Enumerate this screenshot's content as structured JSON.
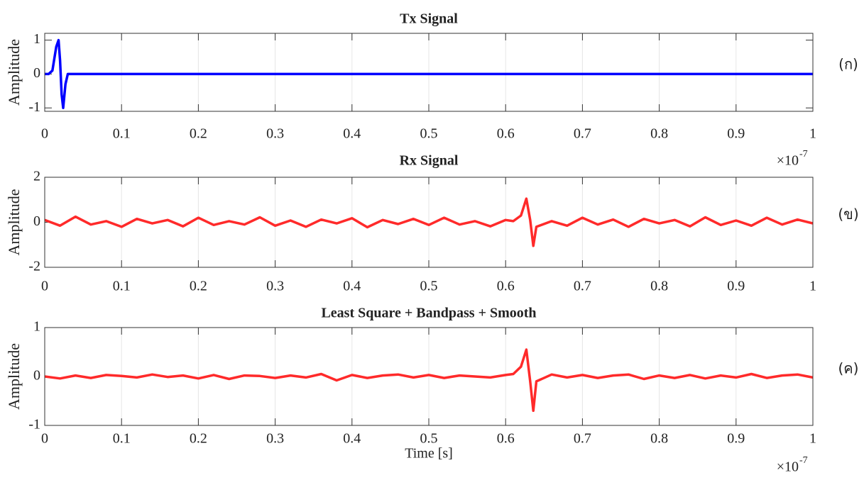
{
  "chart_data": [
    {
      "type": "line",
      "title": "Tx Signal",
      "ylabel": "Amplitude",
      "panel_label": "(ก)",
      "x": [
        0,
        0.005,
        0.01,
        0.015,
        0.018,
        0.02,
        0.022,
        0.024,
        0.027,
        0.03,
        0.04,
        1
      ],
      "series": [
        {
          "color": "#0000ff",
          "values": [
            0,
            0,
            0.1,
            0.8,
            1,
            0.4,
            -0.6,
            -1,
            -0.3,
            0,
            0,
            0
          ]
        }
      ],
      "xlim": [
        0,
        1
      ],
      "xticks": [
        0,
        0.1,
        0.2,
        0.3,
        0.4,
        0.5,
        0.6,
        0.7,
        0.8,
        0.9,
        1
      ],
      "ylim": [
        -1.1,
        1.2
      ],
      "yticks": [
        -1,
        0,
        1
      ],
      "grid": true
    },
    {
      "type": "line",
      "title": "Rx Signal",
      "ylabel": "Amplitude",
      "panel_label": "(ข)",
      "x_multiplier": {
        "base": "×10",
        "exponent": "-7"
      },
      "x": [
        0,
        0.02,
        0.04,
        0.06,
        0.08,
        0.1,
        0.12,
        0.14,
        0.16,
        0.18,
        0.2,
        0.22,
        0.24,
        0.26,
        0.28,
        0.3,
        0.32,
        0.34,
        0.36,
        0.38,
        0.4,
        0.42,
        0.44,
        0.46,
        0.48,
        0.5,
        0.52,
        0.54,
        0.56,
        0.58,
        0.6,
        0.61,
        0.62,
        0.627,
        0.632,
        0.636,
        0.64,
        0.66,
        0.68,
        0.7,
        0.72,
        0.74,
        0.76,
        0.78,
        0.8,
        0.82,
        0.84,
        0.86,
        0.88,
        0.9,
        0.92,
        0.94,
        0.96,
        0.98,
        1
      ],
      "series": [
        {
          "color": "#ff2a2a",
          "values": [
            0.1,
            -0.15,
            0.25,
            -0.1,
            0.05,
            -0.2,
            0.15,
            -0.05,
            0.1,
            -0.18,
            0.2,
            -0.12,
            0.05,
            -0.1,
            0.22,
            -0.15,
            0.08,
            -0.2,
            0.12,
            -0.05,
            0.18,
            -0.22,
            0.1,
            -0.08,
            0.15,
            -0.12,
            0.2,
            -0.1,
            0.05,
            -0.18,
            0.1,
            0.05,
            0.3,
            1.05,
            0.1,
            -1.05,
            -0.2,
            0.05,
            -0.15,
            0.2,
            -0.1,
            0.12,
            -0.2,
            0.15,
            -0.05,
            0.1,
            -0.18,
            0.22,
            -0.12,
            0.08,
            -0.15,
            0.2,
            -0.1,
            0.12,
            -0.05
          ]
        }
      ],
      "xlim": [
        0,
        1
      ],
      "xticks": [
        0,
        0.1,
        0.2,
        0.3,
        0.4,
        0.5,
        0.6,
        0.7,
        0.8,
        0.9,
        1
      ],
      "ylim": [
        -2,
        2
      ],
      "yticks": [
        -2,
        0,
        2
      ],
      "grid": true
    },
    {
      "type": "line",
      "title": "Least Square + Bandpass + Smooth",
      "ylabel": "Amplitude",
      "xlabel": "Time [s]",
      "panel_label": "(ค)",
      "x_multiplier": {
        "base": "×10",
        "exponent": "-7"
      },
      "x": [
        0,
        0.02,
        0.04,
        0.06,
        0.08,
        0.1,
        0.12,
        0.14,
        0.16,
        0.18,
        0.2,
        0.22,
        0.24,
        0.26,
        0.28,
        0.3,
        0.32,
        0.34,
        0.36,
        0.38,
        0.4,
        0.42,
        0.44,
        0.46,
        0.48,
        0.5,
        0.52,
        0.54,
        0.56,
        0.58,
        0.6,
        0.61,
        0.62,
        0.627,
        0.632,
        0.636,
        0.64,
        0.66,
        0.68,
        0.7,
        0.72,
        0.74,
        0.76,
        0.78,
        0.8,
        0.82,
        0.84,
        0.86,
        0.88,
        0.9,
        0.92,
        0.94,
        0.96,
        0.98,
        1
      ],
      "series": [
        {
          "color": "#ff2a2a",
          "values": [
            0,
            -0.04,
            0.02,
            -0.03,
            0.03,
            0.01,
            -0.02,
            0.04,
            -0.01,
            0.02,
            -0.04,
            0.03,
            -0.05,
            0.02,
            0.01,
            -0.03,
            0.02,
            -0.02,
            0.05,
            -0.08,
            0.03,
            -0.03,
            0.02,
            0.04,
            -0.02,
            0.03,
            -0.03,
            0.02,
            0,
            -0.02,
            0.03,
            0.05,
            0.2,
            0.55,
            -0.1,
            -0.7,
            -0.1,
            0.04,
            -0.02,
            0.03,
            -0.03,
            0.02,
            0.04,
            -0.05,
            0.02,
            -0.03,
            0.03,
            -0.04,
            0.02,
            -0.02,
            0.05,
            -0.03,
            0.02,
            0.04,
            -0.02
          ]
        }
      ],
      "xlim": [
        0,
        1
      ],
      "xticks": [
        0,
        0.1,
        0.2,
        0.3,
        0.4,
        0.5,
        0.6,
        0.7,
        0.8,
        0.9,
        1
      ],
      "ylim": [
        -1,
        1
      ],
      "yticks": [
        -1,
        0,
        1
      ],
      "grid": true
    }
  ]
}
